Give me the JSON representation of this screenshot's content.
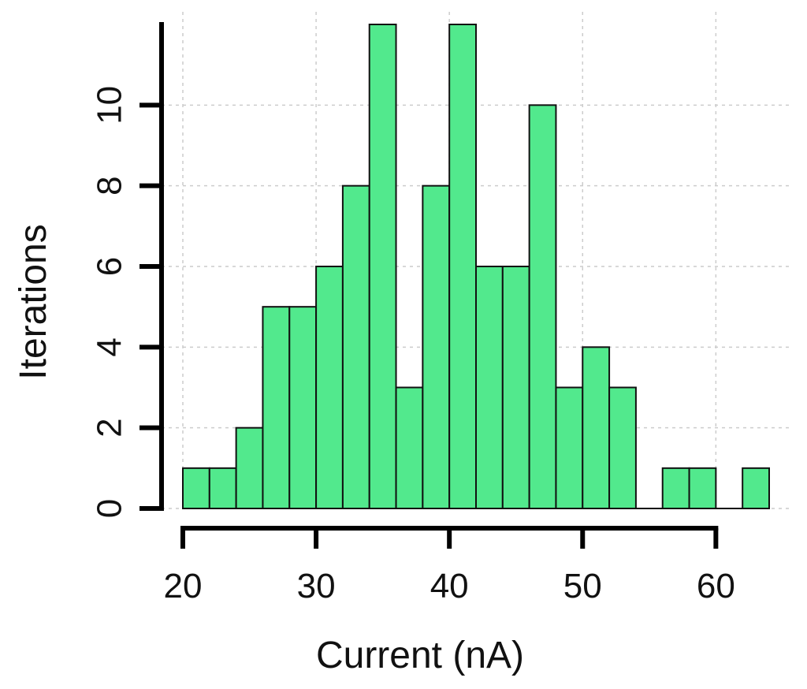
{
  "chart_data": {
    "type": "bar",
    "title": "",
    "xlabel": "Current (nA)",
    "ylabel": "Iterations",
    "bin_width": 2,
    "bin_edges": [
      20,
      22,
      24,
      26,
      28,
      30,
      32,
      34,
      36,
      38,
      40,
      42,
      44,
      46,
      48,
      50,
      52,
      54,
      56,
      58,
      60,
      62,
      64
    ],
    "values": [
      1,
      1,
      2,
      5,
      5,
      6,
      8,
      12,
      3,
      8,
      12,
      6,
      6,
      10,
      3,
      4,
      3,
      0,
      1,
      1,
      0,
      1
    ],
    "xlim": [
      20,
      64
    ],
    "ylim": [
      0,
      12
    ],
    "x_ticks": [
      20,
      30,
      40,
      50,
      60
    ],
    "y_ticks": [
      0,
      2,
      4,
      6,
      8,
      10
    ],
    "grid": true,
    "bar_color": "#52e98d",
    "edge_color": "#111111",
    "grid_color": "#cccccc"
  }
}
